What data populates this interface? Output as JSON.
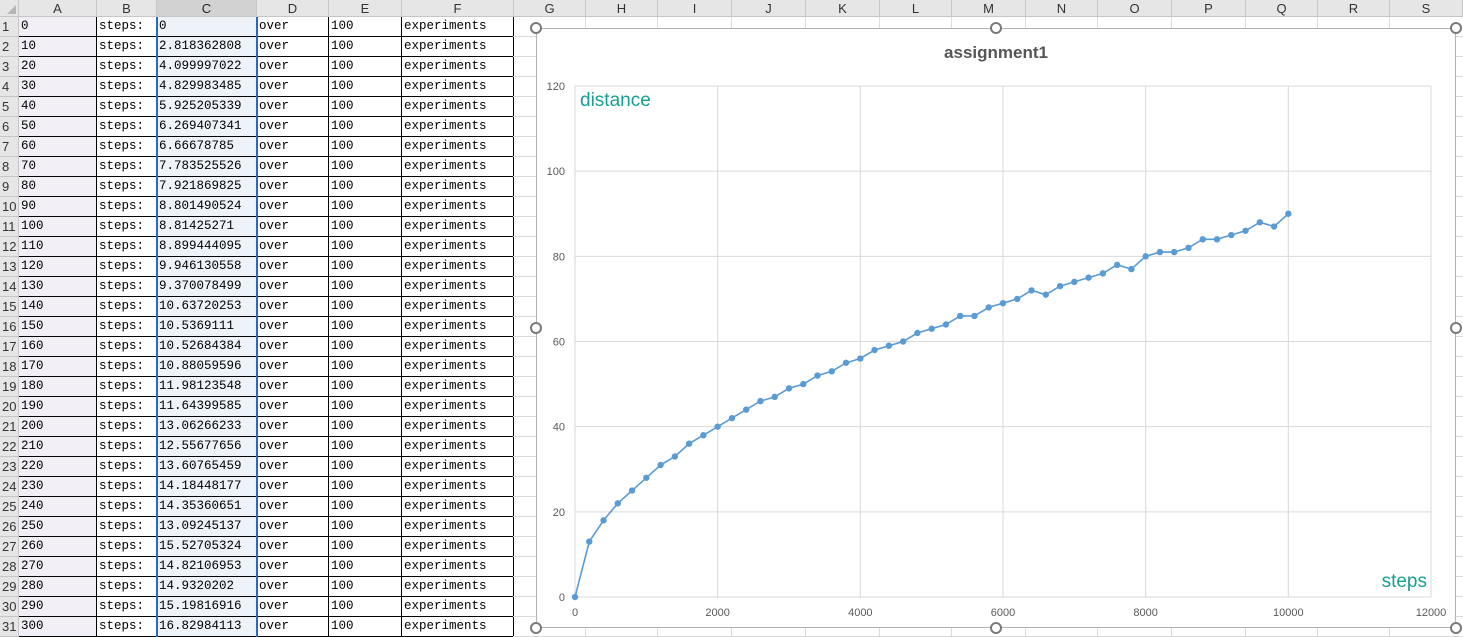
{
  "columns": [
    "A",
    "B",
    "C",
    "D",
    "E",
    "F",
    "G",
    "H",
    "I",
    "J",
    "K",
    "L",
    "M",
    "N",
    "O",
    "P",
    "Q",
    "R",
    "S"
  ],
  "rows": [
    [
      "0",
      "steps:",
      "0",
      "over",
      "100",
      "experiments"
    ],
    [
      "10",
      "steps:",
      "2.818362808",
      "over",
      "100",
      "experiments"
    ],
    [
      "20",
      "steps:",
      "4.099997022",
      "over",
      "100",
      "experiments"
    ],
    [
      "30",
      "steps:",
      "4.829983485",
      "over",
      "100",
      "experiments"
    ],
    [
      "40",
      "steps:",
      "5.925205339",
      "over",
      "100",
      "experiments"
    ],
    [
      "50",
      "steps:",
      "6.269407341",
      "over",
      "100",
      "experiments"
    ],
    [
      "60",
      "steps:",
      "6.66678785",
      "over",
      "100",
      "experiments"
    ],
    [
      "70",
      "steps:",
      "7.783525526",
      "over",
      "100",
      "experiments"
    ],
    [
      "80",
      "steps:",
      "7.921869825",
      "over",
      "100",
      "experiments"
    ],
    [
      "90",
      "steps:",
      "8.801490524",
      "over",
      "100",
      "experiments"
    ],
    [
      "100",
      "steps:",
      "8.81425271",
      "over",
      "100",
      "experiments"
    ],
    [
      "110",
      "steps:",
      "8.899444095",
      "over",
      "100",
      "experiments"
    ],
    [
      "120",
      "steps:",
      "9.946130558",
      "over",
      "100",
      "experiments"
    ],
    [
      "130",
      "steps:",
      "9.370078499",
      "over",
      "100",
      "experiments"
    ],
    [
      "140",
      "steps:",
      "10.63720253",
      "over",
      "100",
      "experiments"
    ],
    [
      "150",
      "steps:",
      "10.5369111",
      "over",
      "100",
      "experiments"
    ],
    [
      "160",
      "steps:",
      "10.52684384",
      "over",
      "100",
      "experiments"
    ],
    [
      "170",
      "steps:",
      "10.88059596",
      "over",
      "100",
      "experiments"
    ],
    [
      "180",
      "steps:",
      "11.98123548",
      "over",
      "100",
      "experiments"
    ],
    [
      "190",
      "steps:",
      "11.64399585",
      "over",
      "100",
      "experiments"
    ],
    [
      "200",
      "steps:",
      "13.06266233",
      "over",
      "100",
      "experiments"
    ],
    [
      "210",
      "steps:",
      "12.55677656",
      "over",
      "100",
      "experiments"
    ],
    [
      "220",
      "steps:",
      "13.60765459",
      "over",
      "100",
      "experiments"
    ],
    [
      "230",
      "steps:",
      "14.18448177",
      "over",
      "100",
      "experiments"
    ],
    [
      "240",
      "steps:",
      "14.35360651",
      "over",
      "100",
      "experiments"
    ],
    [
      "250",
      "steps:",
      "13.09245137",
      "over",
      "100",
      "experiments"
    ],
    [
      "260",
      "steps:",
      "15.52705324",
      "over",
      "100",
      "experiments"
    ],
    [
      "270",
      "steps:",
      "14.82106953",
      "over",
      "100",
      "experiments"
    ],
    [
      "280",
      "steps:",
      "14.9320202",
      "over",
      "100",
      "experiments"
    ],
    [
      "290",
      "steps:",
      "15.19816916",
      "over",
      "100",
      "experiments"
    ],
    [
      "300",
      "steps:",
      "16.82984113",
      "over",
      "100",
      "experiments"
    ]
  ],
  "colors": {
    "series": "#5b9bd5",
    "axis_label": "#1a9e92",
    "selection": "#2b68c5"
  },
  "chart_data": {
    "type": "line",
    "title": "assignment1",
    "xlabel": "steps",
    "ylabel": "distance",
    "xlim": [
      0,
      12000
    ],
    "ylim": [
      0,
      120
    ],
    "x_ticks": [
      0,
      2000,
      4000,
      6000,
      8000,
      10000,
      12000
    ],
    "y_ticks": [
      0,
      20,
      40,
      60,
      80,
      100,
      120
    ],
    "grid": true,
    "legend": "none",
    "series": [
      {
        "markers": true,
        "x": [
          0,
          200,
          400,
          600,
          800,
          1000,
          1200,
          1400,
          1600,
          1800,
          2000,
          2200,
          2400,
          2600,
          2800,
          3000,
          3200,
          3400,
          3600,
          3800,
          4000,
          4200,
          4400,
          4600,
          4800,
          5000,
          5200,
          5400,
          5600,
          5800,
          6000,
          6200,
          6400,
          6600,
          6800,
          7000,
          7200,
          7400,
          7600,
          7800,
          8000,
          8200,
          8400,
          8600,
          8800,
          9000,
          9200,
          9400,
          9600,
          9800,
          10000
        ],
        "y": [
          0,
          13,
          18,
          22,
          25,
          28,
          31,
          33,
          36,
          38,
          40,
          42,
          44,
          46,
          47,
          49,
          50,
          52,
          53,
          55,
          56,
          58,
          59,
          60,
          62,
          63,
          64,
          66,
          66,
          68,
          69,
          70,
          72,
          71,
          73,
          74,
          75,
          76,
          78,
          77,
          80,
          81,
          81,
          82,
          84,
          84,
          85,
          86,
          88,
          87,
          90
        ]
      }
    ]
  }
}
